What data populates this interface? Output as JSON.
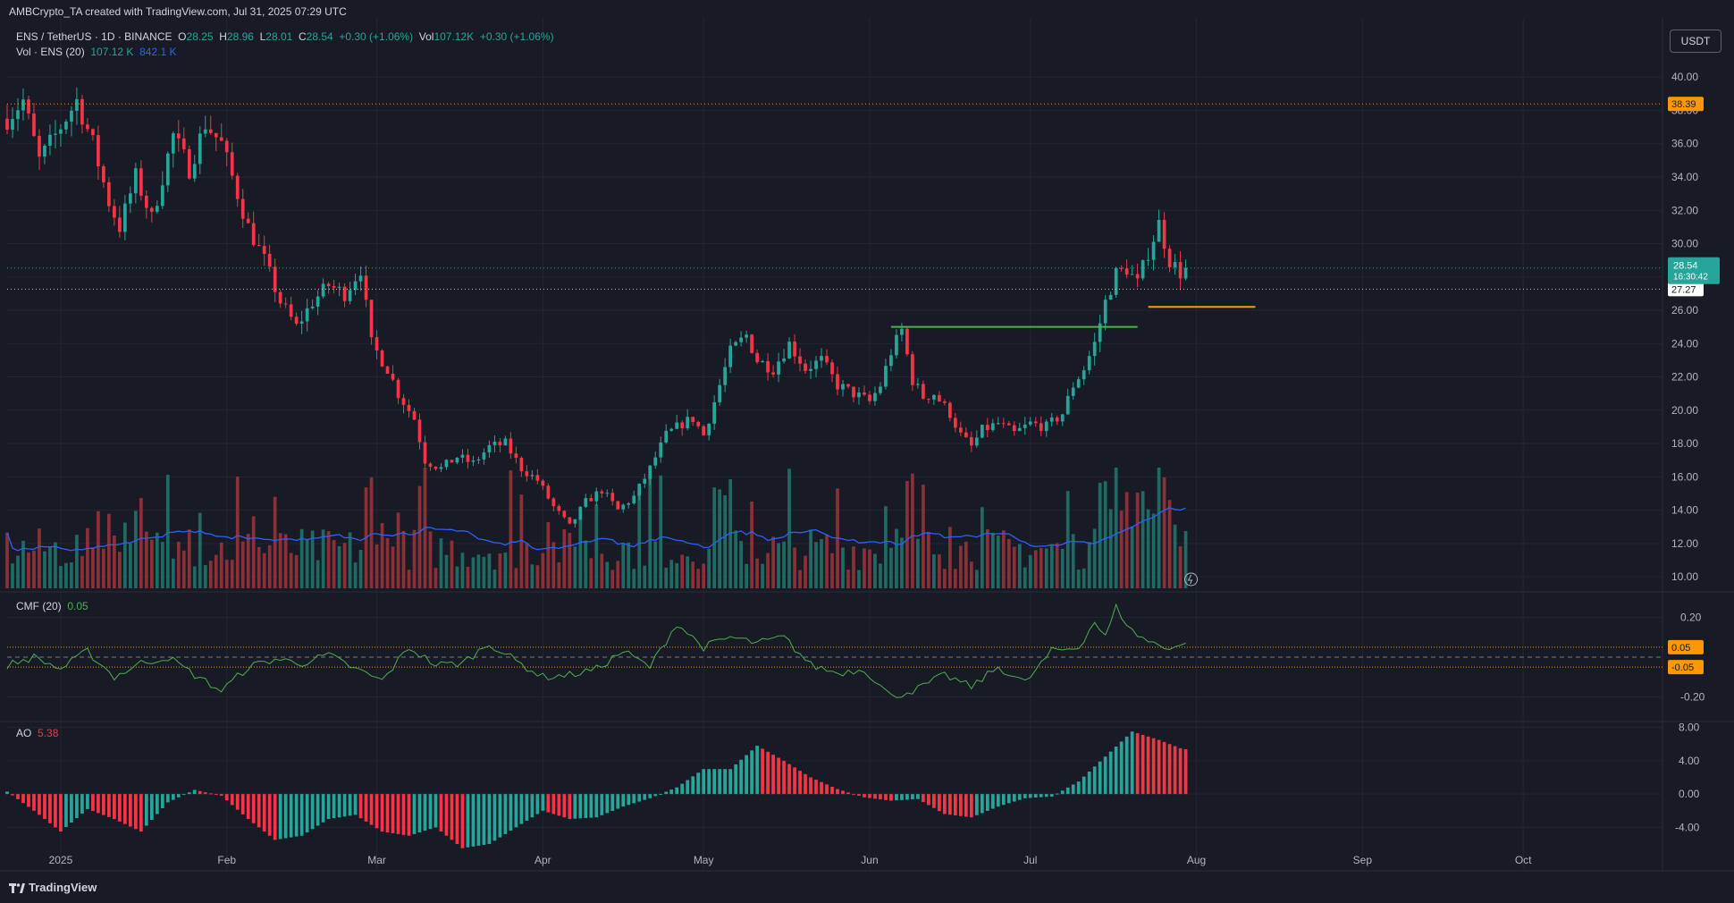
{
  "header": {
    "top_line": "AMBCrypto_TA created with TradingView.com, Jul 31, 2025 07:29 UTC",
    "symbol": "ENS / TetherUS · 1D · BINANCE",
    "ohlc": {
      "o_label": "O",
      "o": "28.25",
      "h_label": "H",
      "h": "28.96",
      "l_label": "L",
      "l": "28.01",
      "c_label": "C",
      "c": "28.54",
      "change": "+0.30 (+1.06%)",
      "vol_label": "Vol",
      "vol": "107.12K",
      "vol_change": "+0.30 (+1.06%)"
    },
    "volume_legend": {
      "label": "Vol · ENS (20)",
      "v1": "107.12 K",
      "v2": "842.1 K"
    },
    "currency_button": "USDT"
  },
  "indicators": {
    "cmf": {
      "label": "CMF (20)",
      "value": "0.05"
    },
    "ao": {
      "label": "AO",
      "value": "5.38"
    }
  },
  "footer": {
    "brand": "TradingView"
  },
  "colors": {
    "up": "#26a69a",
    "down": "#f23645",
    "bg": "#181a25",
    "grid": "#232632",
    "orange": "#ff9800",
    "green_line": "#4caf50",
    "vol_ma": "#2962ff",
    "cmf_line": "#4caf50"
  },
  "chart_data": [
    {
      "type": "candlestick",
      "title": "ENS / TetherUS · 1D · BINANCE",
      "y_ticks": [
        "10.00",
        "12.00",
        "14.00",
        "16.00",
        "18.00",
        "20.00",
        "22.00",
        "24.00",
        "26.00",
        "28.00",
        "30.00",
        "32.00",
        "34.00",
        "36.00",
        "38.00",
        "40.00"
      ],
      "ylim": [
        9.2,
        41.3
      ],
      "x_ticks": [
        "2025",
        "Feb",
        "Mar",
        "Apr",
        "May",
        "Jun",
        "Jul",
        "Aug",
        "Sep",
        "Oct"
      ],
      "x_tick_days": [
        0,
        31,
        59,
        90,
        120,
        151,
        181,
        212,
        243,
        273
      ],
      "x_range_days": [
        -10,
        299
      ],
      "last_day": 210,
      "anchors": [
        [
          -10,
          37.5
        ],
        [
          -7,
          38.6
        ],
        [
          -4,
          35.0
        ],
        [
          -1,
          36.5
        ],
        [
          3,
          38.6
        ],
        [
          6,
          36.0
        ],
        [
          9,
          32.5
        ],
        [
          11,
          31.0
        ],
        [
          14,
          34.0
        ],
        [
          17,
          31.5
        ],
        [
          21,
          36.5
        ],
        [
          24,
          34.5
        ],
        [
          27,
          37.2
        ],
        [
          30,
          36.0
        ],
        [
          32,
          34.0
        ],
        [
          35,
          31.0
        ],
        [
          38,
          29.0
        ],
        [
          41,
          26.5
        ],
        [
          44,
          25.0
        ],
        [
          47,
          26.5
        ],
        [
          50,
          27.5
        ],
        [
          53,
          27.0
        ],
        [
          56,
          28.5
        ],
        [
          58,
          24.0
        ],
        [
          61,
          22.5
        ],
        [
          63,
          21.0
        ],
        [
          66,
          19.5
        ],
        [
          68,
          17.0
        ],
        [
          71,
          16.5
        ],
        [
          74,
          17.2
        ],
        [
          77,
          16.8
        ],
        [
          80,
          17.8
        ],
        [
          83,
          18.0
        ],
        [
          86,
          16.5
        ],
        [
          89,
          15.8
        ],
        [
          92,
          14.2
        ],
        [
          95,
          13.0
        ],
        [
          98,
          14.5
        ],
        [
          101,
          15.2
        ],
        [
          104,
          14.0
        ],
        [
          107,
          14.8
        ],
        [
          110,
          16.5
        ],
        [
          113,
          18.5
        ],
        [
          116,
          19.2
        ],
        [
          118,
          19.5
        ],
        [
          120,
          18.5
        ],
        [
          123,
          21.5
        ],
        [
          125,
          23.5
        ],
        [
          128,
          24.5
        ],
        [
          130,
          23.0
        ],
        [
          133,
          22.5
        ],
        [
          136,
          24.0
        ],
        [
          139,
          22.5
        ],
        [
          142,
          23.0
        ],
        [
          145,
          21.5
        ],
        [
          148,
          21.0
        ],
        [
          151,
          20.5
        ],
        [
          153,
          21.5
        ],
        [
          155,
          23.5
        ],
        [
          157,
          24.8
        ],
        [
          159,
          21.8
        ],
        [
          161,
          20.8
        ],
        [
          163,
          21.0
        ],
        [
          166,
          19.8
        ],
        [
          168,
          18.5
        ],
        [
          170,
          17.8
        ],
        [
          172,
          18.8
        ],
        [
          175,
          19.2
        ],
        [
          178,
          18.6
        ],
        [
          181,
          19.2
        ],
        [
          184,
          19.0
        ],
        [
          187,
          19.8
        ],
        [
          189,
          21.5
        ],
        [
          191,
          22.5
        ],
        [
          193,
          24.0
        ],
        [
          195,
          26.5
        ],
        [
          197,
          28.2
        ],
        [
          199,
          28.5
        ],
        [
          201,
          27.6
        ],
        [
          203,
          29.5
        ],
        [
          205,
          31.2
        ],
        [
          207,
          29.0
        ],
        [
          209,
          28.25
        ],
        [
          210,
          28.54
        ]
      ],
      "current_price": "28.54",
      "countdown": "16:30:42",
      "levels": [
        {
          "label": "38.39",
          "value": 38.39,
          "style": "dotted",
          "color": "#ff9800"
        },
        {
          "label": "27.27",
          "value": 27.27,
          "style": "dotted",
          "color": "#d1d4dc"
        }
      ],
      "segments": [
        {
          "color": "#4caf50",
          "from_day": 155,
          "to_day": 201,
          "value": 25.0
        },
        {
          "color": "#ff9800",
          "from_day": 203,
          "to_day": 223,
          "value": 26.2
        }
      ]
    },
    {
      "type": "volume",
      "title": "Vol · ENS (20)",
      "values": [
        "107.12 K",
        "842.1 K"
      ]
    },
    {
      "type": "line",
      "title": "CMF (20)",
      "y_ticks": [
        "0.20",
        "-0.20"
      ],
      "ylim": [
        -0.32,
        0.32
      ],
      "levels": [
        {
          "label": "0.05",
          "value": 0.05,
          "color": "#ff9800"
        },
        {
          "label": "-0.05",
          "value": -0.05,
          "color": "#ff9800"
        },
        {
          "label": "",
          "value": 0,
          "color": "#787b86"
        }
      ],
      "anchors": [
        [
          -10,
          -0.04
        ],
        [
          -5,
          0.0
        ],
        [
          0,
          -0.06
        ],
        [
          5,
          0.03
        ],
        [
          10,
          -0.1
        ],
        [
          15,
          -0.03
        ],
        [
          20,
          0.0
        ],
        [
          25,
          -0.09
        ],
        [
          30,
          -0.17
        ],
        [
          35,
          -0.05
        ],
        [
          40,
          -0.01
        ],
        [
          45,
          -0.03
        ],
        [
          50,
          0.01
        ],
        [
          55,
          -0.06
        ],
        [
          60,
          -0.12
        ],
        [
          65,
          0.05
        ],
        [
          70,
          -0.04
        ],
        [
          75,
          -0.03
        ],
        [
          80,
          0.07
        ],
        [
          85,
          -0.02
        ],
        [
          90,
          -0.1
        ],
        [
          95,
          -0.09
        ],
        [
          100,
          -0.06
        ],
        [
          105,
          0.03
        ],
        [
          110,
          -0.05
        ],
        [
          115,
          0.17
        ],
        [
          120,
          0.05
        ],
        [
          125,
          0.1
        ],
        [
          130,
          0.07
        ],
        [
          135,
          0.1
        ],
        [
          140,
          -0.04
        ],
        [
          145,
          -0.08
        ],
        [
          150,
          -0.06
        ],
        [
          155,
          -0.2
        ],
        [
          160,
          -0.16
        ],
        [
          165,
          -0.09
        ],
        [
          170,
          -0.15
        ],
        [
          175,
          -0.05
        ],
        [
          180,
          -0.13
        ],
        [
          185,
          0.03
        ],
        [
          190,
          0.05
        ],
        [
          193,
          0.18
        ],
        [
          195,
          0.1
        ],
        [
          197,
          0.25
        ],
        [
          200,
          0.13
        ],
        [
          203,
          0.08
        ],
        [
          206,
          0.05
        ],
        [
          209,
          0.06
        ]
      ],
      "value": "0.05"
    },
    {
      "type": "bar",
      "title": "AO",
      "y_ticks": [
        "8.00",
        "4.00",
        "0.00",
        "-4.00"
      ],
      "ylim": [
        -9.0,
        8.6
      ],
      "anchors": [
        [
          -10,
          0.3
        ],
        [
          -5,
          -2.0
        ],
        [
          0,
          -4.5
        ],
        [
          5,
          -1.8
        ],
        [
          10,
          -3.0
        ],
        [
          15,
          -4.5
        ],
        [
          20,
          -1.0
        ],
        [
          25,
          0.5
        ],
        [
          30,
          -0.2
        ],
        [
          35,
          -3.0
        ],
        [
          40,
          -5.5
        ],
        [
          45,
          -5.0
        ],
        [
          50,
          -3.0
        ],
        [
          55,
          -2.5
        ],
        [
          60,
          -4.5
        ],
        [
          65,
          -5.0
        ],
        [
          70,
          -4.0
        ],
        [
          75,
          -6.5
        ],
        [
          80,
          -6.0
        ],
        [
          85,
          -4.0
        ],
        [
          90,
          -2.0
        ],
        [
          95,
          -3.0
        ],
        [
          100,
          -2.8
        ],
        [
          105,
          -1.5
        ],
        [
          110,
          -0.5
        ],
        [
          115,
          0.8
        ],
        [
          120,
          3.0
        ],
        [
          125,
          3.0
        ],
        [
          130,
          5.8
        ],
        [
          135,
          4.0
        ],
        [
          140,
          2.0
        ],
        [
          145,
          0.6
        ],
        [
          150,
          -0.4
        ],
        [
          155,
          -0.8
        ],
        [
          160,
          -0.6
        ],
        [
          165,
          -2.4
        ],
        [
          170,
          -2.8
        ],
        [
          175,
          -1.5
        ],
        [
          180,
          -0.5
        ],
        [
          185,
          -0.3
        ],
        [
          190,
          1.5
        ],
        [
          195,
          4.5
        ],
        [
          200,
          7.5
        ],
        [
          205,
          6.5
        ],
        [
          209,
          5.5
        ],
        [
          210,
          5.38
        ]
      ],
      "value": "5.38"
    }
  ]
}
